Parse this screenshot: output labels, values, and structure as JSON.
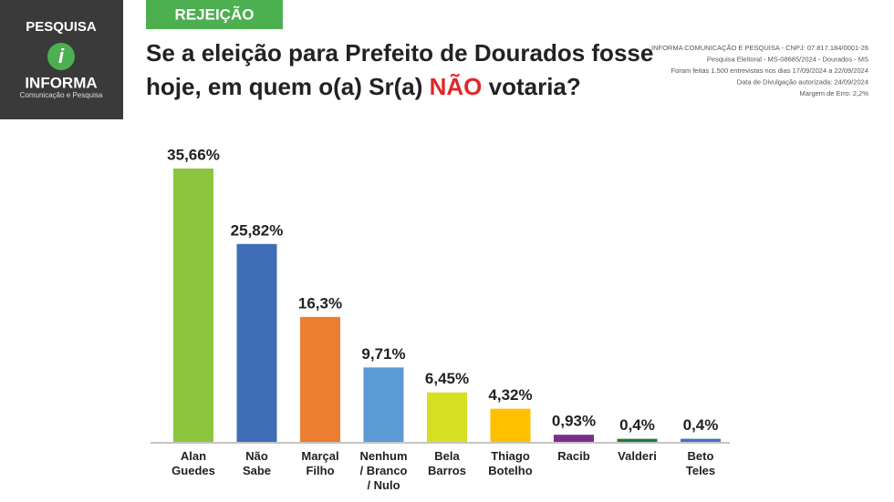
{
  "header": {
    "logo_top": "PESQUISA",
    "logo_name": "INFORMA",
    "logo_sub": "Comunicação e Pesquisa",
    "tag": "REJEIÇÃO",
    "notes": [
      "INFORMA COMUNICAÇÃO E PESQUISA - CNPJ: 07.817.184/0001-26",
      "Pesquisa Eleitoral - MS-08685/2024 - Dourados - MS",
      "Foram feitas 1.500 entrevistas nos dias 17/09/2024 a 22/09/2024",
      "Data de Divulgação autorizada: 24/09/2024",
      "Margem de Erro: 2,2%"
    ]
  },
  "chart_data": {
    "type": "bar",
    "title_lines": [
      [
        "Se a eleição para Prefeito de Dourados fosse"
      ],
      [
        "hoje, em quem o(a) Sr(a) ",
        "NÃO",
        " votaria?"
      ]
    ],
    "categories": [
      [
        "Alan",
        "Guedes"
      ],
      [
        "Não",
        "Sabe"
      ],
      [
        "Marçal",
        "Filho"
      ],
      [
        "Nenhum",
        "/ Branco",
        "/ Nulo"
      ],
      [
        "Bela",
        "Barros"
      ],
      [
        "Thiago",
        "Botelho"
      ],
      [
        "Racib"
      ],
      [
        "Valderi"
      ],
      [
        "Beto",
        "Teles"
      ]
    ],
    "values": [
      35.66,
      25.82,
      16.3,
      9.71,
      6.45,
      4.32,
      0.93,
      0.4,
      0.4
    ],
    "value_labels": [
      "35,66%",
      "25,82%",
      "16,3%",
      "9,71%",
      "6,45%",
      "4,32%",
      "0,93%",
      "0,4%",
      "0,4%"
    ],
    "colors": [
      "#8cc63f",
      "#3f6db5",
      "#ed7d31",
      "#5b9bd5",
      "#d6e022",
      "#ffc000",
      "#7b2d8e",
      "#1f7a3c",
      "#4472c4"
    ]
  }
}
